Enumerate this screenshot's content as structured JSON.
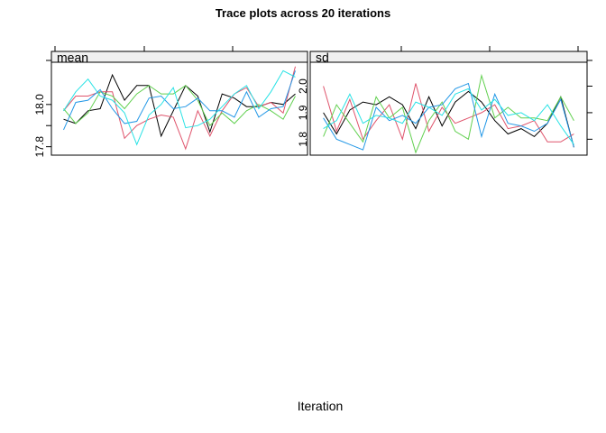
{
  "chart_data": {
    "type": "line",
    "title": "Trace plots across 20 iterations",
    "xlabel": "Iteration",
    "x": [
      1,
      2,
      3,
      4,
      5,
      6,
      7,
      8,
      9,
      10,
      11,
      12,
      13,
      14,
      15,
      16,
      17,
      18,
      19,
      20
    ],
    "xlim": [
      0,
      21
    ],
    "series_colors": [
      "#000000",
      "#DF536B",
      "#61D04F",
      "#2297E6",
      "#28E2E5"
    ],
    "panels": [
      {
        "strip": "mean",
        "ylim": [
          17.76,
          18.2
        ],
        "yticks": [
          17.8,
          17.9,
          18.0
        ],
        "ytick_labels": [
          "17.8",
          "",
          "18.0"
        ],
        "series": [
          {
            "values": [
              17.93,
              17.91,
              17.97,
              17.98,
              18.14,
              18.02,
              18.09,
              18.09,
              17.85,
              17.97,
              18.09,
              18.04,
              17.87,
              18.05,
              18.03,
              17.99,
              17.99,
              18.01,
              18.0,
              18.05
            ]
          },
          {
            "values": [
              17.97,
              18.04,
              18.04,
              18.06,
              18.06,
              17.84,
              17.9,
              17.93,
              17.95,
              17.94,
              17.79,
              17.97,
              17.85,
              17.97,
              18.05,
              18.08,
              17.99,
              18.01,
              17.96,
              18.18
            ]
          },
          {
            "values": [
              17.98,
              17.91,
              17.96,
              18.06,
              18.04,
              17.98,
              18.05,
              18.09,
              18.05,
              18.05,
              18.09,
              18.02,
              17.9,
              17.96,
              17.91,
              17.97,
              18.0,
              17.97,
              17.93,
              18.04
            ]
          },
          {
            "values": [
              17.88,
              18.01,
              18.02,
              18.07,
              17.98,
              17.91,
              17.92,
              18.03,
              18.04,
              17.98,
              17.99,
              18.03,
              17.97,
              17.97,
              17.94,
              18.06,
              17.94,
              17.98,
              17.99,
              18.16
            ]
          },
          {
            "values": [
              17.97,
              18.06,
              18.12,
              18.04,
              18.02,
              17.96,
              17.81,
              17.95,
              18.0,
              18.08,
              17.89,
              17.9,
              17.93,
              17.99,
              18.05,
              18.09,
              17.98,
              18.06,
              18.16,
              18.13
            ]
          }
        ]
      },
      {
        "strip": "sd",
        "ylim": [
          1.74,
          2.09
        ],
        "yticks": [
          1.8,
          1.9,
          2.0
        ],
        "ytick_labels": [
          "1.8",
          "1.9",
          "2.0"
        ],
        "series": [
          {
            "values": [
              1.9,
              1.82,
              1.91,
              1.94,
              1.93,
              1.96,
              1.93,
              1.84,
              1.96,
              1.85,
              1.94,
              1.98,
              1.94,
              1.87,
              1.82,
              1.84,
              1.81,
              1.86,
              1.96,
              1.77
            ]
          },
          {
            "values": [
              2.0,
              1.83,
              1.95,
              1.8,
              1.87,
              1.93,
              1.8,
              2.01,
              1.83,
              1.92,
              1.86,
              1.88,
              1.9,
              1.93,
              1.84,
              1.85,
              1.87,
              1.79,
              1.79,
              1.82
            ]
          },
          {
            "values": [
              1.81,
              1.93,
              1.86,
              1.79,
              1.96,
              1.88,
              1.92,
              1.75,
              1.87,
              1.94,
              1.83,
              1.8,
              2.04,
              1.88,
              1.92,
              1.88,
              1.88,
              1.87,
              1.96,
              1.87
            ]
          },
          {
            "values": [
              1.88,
              1.8,
              1.78,
              1.76,
              1.92,
              1.87,
              1.89,
              1.86,
              1.92,
              1.93,
              1.99,
              2.01,
              1.81,
              1.97,
              1.86,
              1.85,
              1.83,
              1.86,
              1.95,
              1.77
            ]
          },
          {
            "values": [
              1.84,
              1.87,
              1.97,
              1.86,
              1.89,
              1.88,
              1.86,
              1.94,
              1.92,
              1.89,
              1.97,
              1.99,
              1.91,
              1.95,
              1.89,
              1.9,
              1.87,
              1.93,
              1.85,
              1.78
            ]
          }
        ]
      }
    ]
  }
}
